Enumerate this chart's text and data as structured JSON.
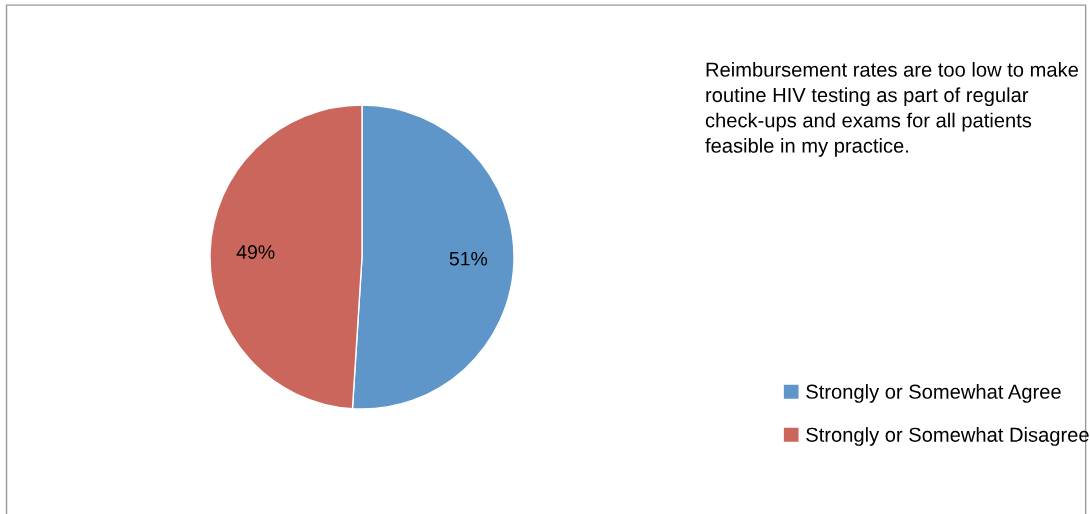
{
  "chart_data": {
    "type": "pie",
    "title": "Reimbursement rates are too low to make routine HIV testing as part of regular check-ups and exams for all patients feasible in my practice.",
    "categories": [
      "Strongly or Somewhat Agree",
      "Strongly or Somewhat Disagree"
    ],
    "values": [
      51,
      49
    ],
    "colors": [
      "#5f96c9",
      "#cb665c"
    ],
    "value_labels": [
      "51%",
      "49%"
    ],
    "legend": "right"
  }
}
